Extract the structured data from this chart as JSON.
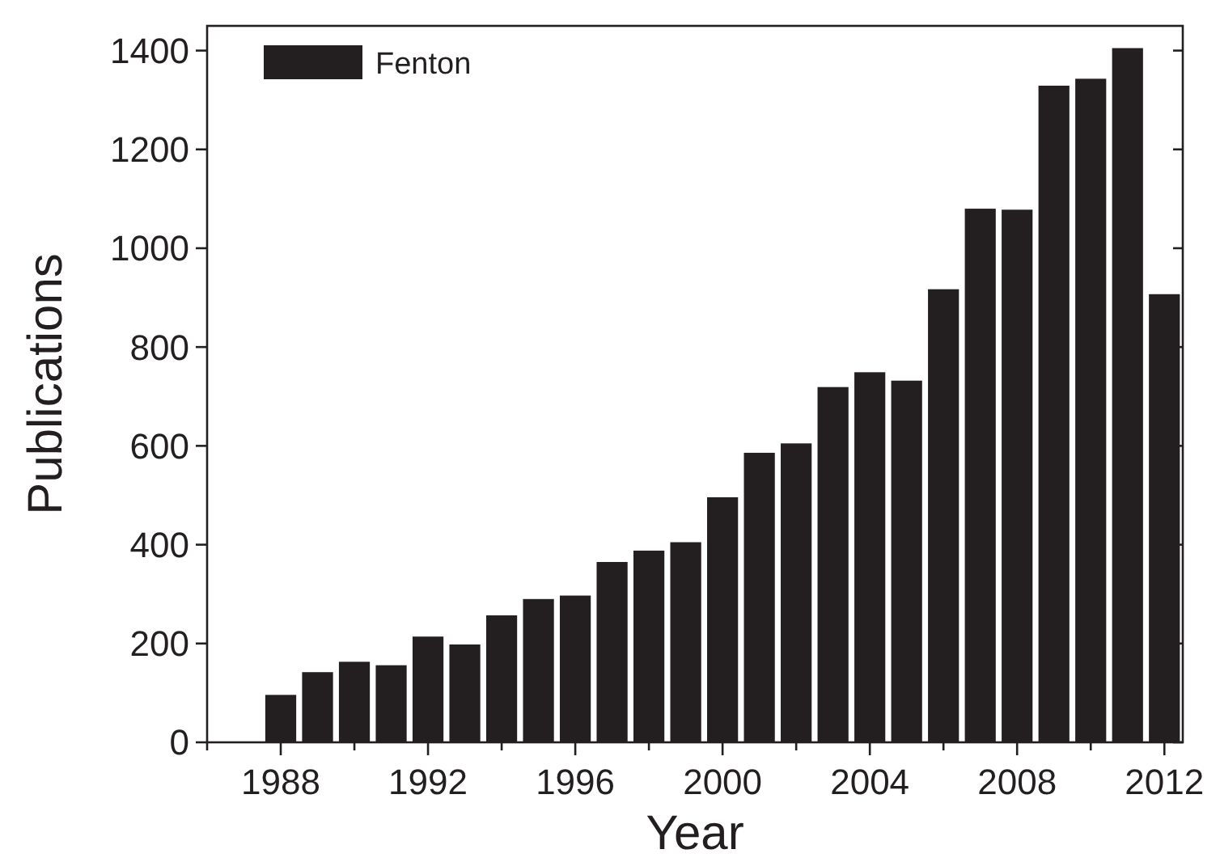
{
  "chart_data": {
    "type": "bar",
    "xlabel": "Year",
    "ylabel": "Publications",
    "x": [
      1988,
      1989,
      1990,
      1991,
      1992,
      1993,
      1994,
      1995,
      1996,
      1997,
      1998,
      1999,
      2000,
      2001,
      2002,
      2003,
      2004,
      2005,
      2006,
      2007,
      2008,
      2009,
      2010,
      2011,
      2012
    ],
    "series": [
      {
        "name": "Fenton",
        "color": "#231f20",
        "values": [
          96,
          142,
          163,
          156,
          214,
          198,
          257,
          290,
          297,
          365,
          388,
          405,
          496,
          586,
          605,
          719,
          749,
          732,
          917,
          1080,
          1078,
          1329,
          1343,
          1405,
          907
        ]
      }
    ],
    "xlim": [
      1986,
      2012.5
    ],
    "xticks": [
      {
        "value": 1986,
        "label": null
      },
      1988,
      {
        "value": 1990,
        "label": null
      },
      1992,
      {
        "value": 1994,
        "label": null
      },
      1996,
      {
        "value": 1998,
        "label": null
      },
      2000,
      {
        "value": 2002,
        "label": null
      },
      2004,
      {
        "value": 2006,
        "label": null
      },
      2008,
      {
        "value": 2010,
        "label": null
      },
      2012
    ],
    "ylim": [
      0,
      1450
    ],
    "yticks": [
      0,
      200,
      400,
      600,
      800,
      1000,
      1200,
      1400
    ],
    "legend": "top left"
  }
}
